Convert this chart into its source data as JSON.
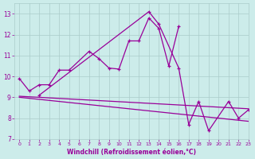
{
  "xlabel": "Windchill (Refroidissement éolien,°C)",
  "series1_x": [
    0,
    1,
    2,
    3,
    4,
    5,
    7,
    8,
    9,
    10,
    11,
    12,
    13,
    14,
    15,
    16
  ],
  "series1_y": [
    9.9,
    9.3,
    9.6,
    9.6,
    10.3,
    10.3,
    11.2,
    10.85,
    10.4,
    10.35,
    11.7,
    11.7,
    12.8,
    12.3,
    10.5,
    12.4
  ],
  "series2_x": [
    2,
    13,
    14,
    16,
    17,
    18,
    19,
    21,
    22,
    23
  ],
  "series2_y": [
    9.1,
    13.1,
    12.5,
    10.4,
    7.7,
    8.8,
    7.4,
    8.8,
    8.0,
    8.4
  ],
  "series3_x": [
    0,
    23
  ],
  "series3_y": [
    9.05,
    8.45
  ],
  "series4_x": [
    0,
    23
  ],
  "series4_y": [
    9.0,
    7.85
  ],
  "ylim": [
    7,
    13.5
  ],
  "xlim": [
    -0.5,
    23
  ],
  "yticks": [
    7,
    8,
    9,
    10,
    11,
    12,
    13
  ],
  "xticks": [
    0,
    1,
    2,
    3,
    4,
    5,
    6,
    7,
    8,
    9,
    10,
    11,
    12,
    13,
    14,
    15,
    16,
    17,
    18,
    19,
    20,
    21,
    22,
    23
  ],
  "line_color": "#990099",
  "bg_color": "#ccecea",
  "grid_color": "#aaccca",
  "tick_label_color": "#990099",
  "xlabel_color": "#990099"
}
